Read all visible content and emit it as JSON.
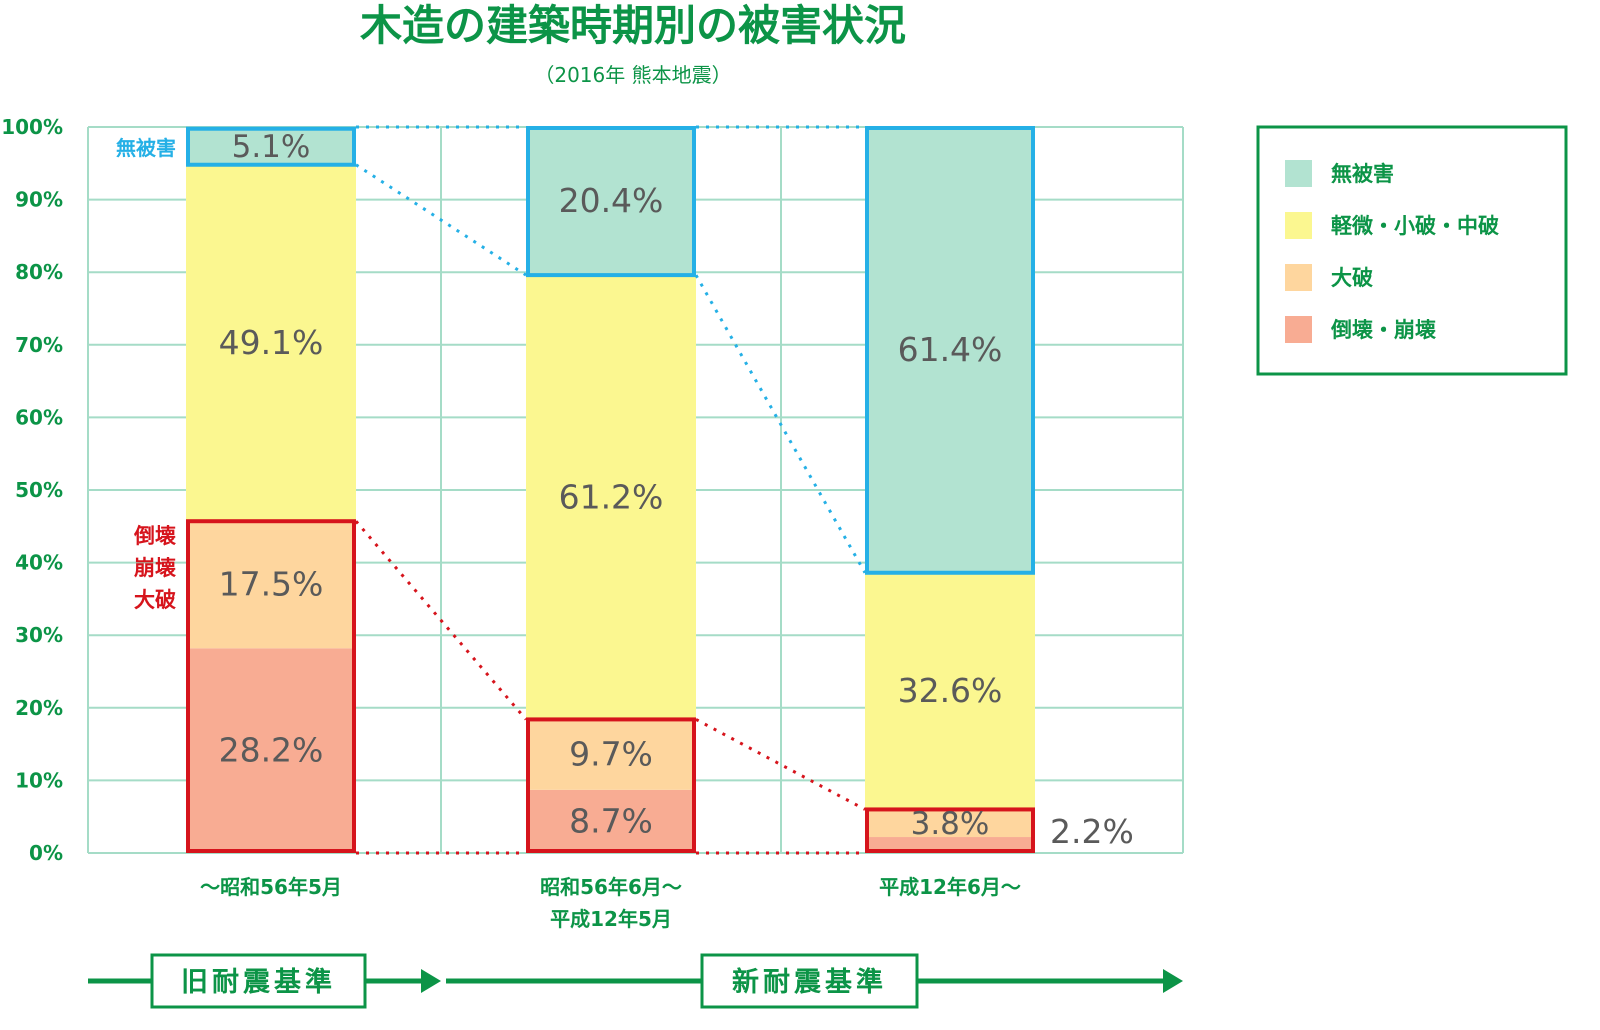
{
  "chart_data": {
    "type": "bar",
    "stacked": true,
    "title": "木造の建築時期別の被害状況",
    "subtitle": "（2016年 熊本地震）",
    "ylim": [
      0,
      100
    ],
    "y_ticks": [
      "0%",
      "10%",
      "20%",
      "30%",
      "40%",
      "50%",
      "60%",
      "70%",
      "80%",
      "90%",
      "100%"
    ],
    "categories": [
      {
        "lines": [
          "〜昭和56年5月"
        ]
      },
      {
        "lines": [
          "昭和56年6月〜",
          "平成12年5月"
        ]
      },
      {
        "lines": [
          "平成12年6月〜"
        ]
      }
    ],
    "series": [
      {
        "name": "倒壊・崩壊",
        "color": "#f8ac93",
        "values": [
          28.2,
          8.7,
          2.2
        ],
        "labels": [
          "28.2%",
          "8.7%",
          "2.2%"
        ]
      },
      {
        "name": "大破",
        "color": "#fed69e",
        "values": [
          17.5,
          9.7,
          3.8
        ],
        "labels": [
          "17.5%",
          "9.7%",
          "3.8%"
        ]
      },
      {
        "name": "軽微・小破・中破",
        "color": "#fbf790",
        "values": [
          49.1,
          61.2,
          32.6
        ],
        "labels": [
          "49.1%",
          "61.2%",
          "32.6%"
        ]
      },
      {
        "name": "無被害",
        "color": "#b2e3d1",
        "values": [
          5.1,
          20.4,
          61.4
        ],
        "labels": [
          "5.1%",
          "20.4%",
          "61.4%"
        ]
      }
    ],
    "legend_position": "top-right",
    "legend_order": [
      "無被害",
      "軽微・小破・中破",
      "大破",
      "倒壊・崩壊"
    ],
    "grid": true,
    "annotations": {
      "no_damage_label": "無被害",
      "collapse_label_lines": [
        "倒壊",
        "崩壊",
        "大破"
      ]
    },
    "standards": [
      {
        "label": "旧耐震基準"
      },
      {
        "label": "新耐震基準"
      }
    ]
  },
  "colors": {
    "accent_green": "#0c9447",
    "grid": "#a5dcc7",
    "label_gray": "#5a5a5a",
    "highlight_blue": "#25b0e6",
    "highlight_red": "#d6141c"
  }
}
